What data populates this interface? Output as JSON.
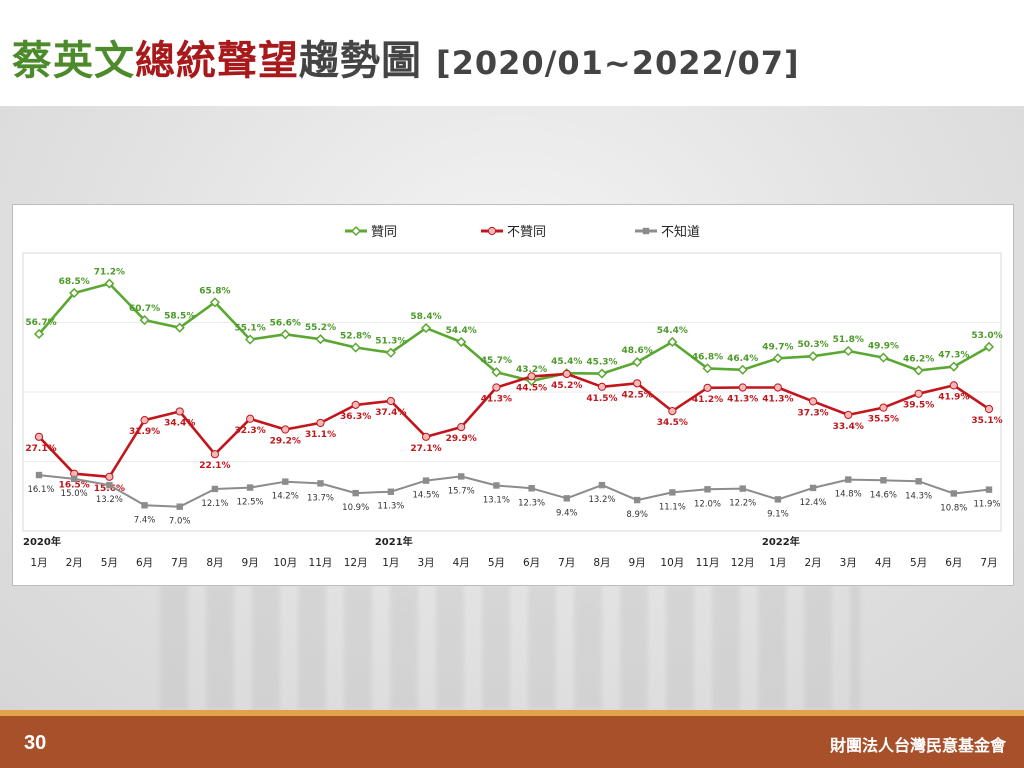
{
  "header": {
    "title_part1": "蔡英文",
    "title_part2": "總統聲望",
    "title_part3": "趨勢圖",
    "date_range": "[2020/01~2022/07]"
  },
  "footer": {
    "page_number": "30",
    "organization": "財團法人台灣民意基金會"
  },
  "chart_data": {
    "type": "line",
    "legend_position": "top-center",
    "categories": [
      "1月",
      "2月",
      "5月",
      "6月",
      "7月",
      "8月",
      "9月",
      "10月",
      "11月",
      "12月",
      "1月",
      "3月",
      "4月",
      "5月",
      "6月",
      "7月",
      "8月",
      "9月",
      "10月",
      "11月",
      "12月",
      "1月",
      "2月",
      "3月",
      "4月",
      "5月",
      "6月",
      "7月"
    ],
    "year_labels": [
      {
        "index": 0,
        "label": "2020年"
      },
      {
        "index": 10,
        "label": "2021年"
      },
      {
        "index": 21,
        "label": "2022年"
      }
    ],
    "ylim": [
      0,
      80
    ],
    "series": [
      {
        "name": "贊同",
        "color": "#5aa832",
        "marker": "diamond",
        "values": [
          56.7,
          68.5,
          71.2,
          60.7,
          58.5,
          65.8,
          55.1,
          56.6,
          55.2,
          52.8,
          51.3,
          58.4,
          54.4,
          45.7,
          43.2,
          45.4,
          45.3,
          48.6,
          54.4,
          46.8,
          46.4,
          49.7,
          50.3,
          51.8,
          49.9,
          46.2,
          47.3,
          53.0
        ],
        "labels": [
          "56.7%",
          "68.5%",
          "71.2%",
          "60.7%",
          "58.5%",
          "65.8%",
          "55.1%",
          "56.6%",
          "55.2%",
          "52.8%",
          "51.3%",
          "58.4%",
          "54.4%",
          "45.7%",
          "43.2%",
          "45.4%",
          "45.3%",
          "48.6%",
          "54.4%",
          "46.8%",
          "46.4%",
          "49.7%",
          "50.3%",
          "51.8%",
          "49.9%",
          "46.2%",
          "47.3%",
          "53.0%"
        ]
      },
      {
        "name": "不贊同",
        "color": "#c0161c",
        "marker": "circle",
        "values": [
          27.1,
          16.5,
          15.6,
          31.9,
          34.4,
          22.1,
          32.3,
          29.2,
          31.1,
          36.3,
          37.4,
          27.1,
          29.9,
          41.3,
          44.5,
          45.2,
          41.5,
          42.5,
          34.5,
          41.2,
          41.3,
          41.3,
          37.3,
          33.4,
          35.5,
          39.5,
          41.9,
          35.1
        ],
        "labels": [
          "27.1%",
          "16.5%",
          "15.6%",
          "31.9%",
          "34.4%",
          "22.1%",
          "32.3%",
          "29.2%",
          "31.1%",
          "36.3%",
          "37.4%",
          "27.1%",
          "29.9%",
          "41.3%",
          "44.5%",
          "45.2%",
          "41.5%",
          "42.5%",
          "34.5%",
          "41.2%",
          "41.3%",
          "41.3%",
          "37.3%",
          "33.4%",
          "35.5%",
          "39.5%",
          "41.9%",
          "35.1%"
        ]
      },
      {
        "name": "不知道",
        "color": "#8c8c8c",
        "marker": "square",
        "values": [
          16.1,
          15.0,
          13.2,
          7.4,
          7.0,
          12.1,
          12.5,
          14.2,
          13.7,
          10.9,
          11.3,
          14.5,
          15.7,
          13.1,
          12.3,
          9.4,
          13.2,
          8.9,
          11.1,
          12.0,
          12.2,
          9.1,
          12.4,
          14.8,
          14.6,
          14.3,
          10.8,
          11.9
        ],
        "labels": [
          "16.1%",
          "15.0%",
          "13.2%",
          "7.4%",
          "7.0%",
          "12.1%",
          "12.5%",
          "14.2%",
          "13.7%",
          "10.9%",
          "11.3%",
          "14.5%",
          "15.7%",
          "13.1%",
          "12.3%",
          "9.4%",
          "13.2%",
          "8.9%",
          "11.1%",
          "12.0%",
          "12.2%",
          "9.1%",
          "12.4%",
          "14.8%",
          "14.6%",
          "14.3%",
          "10.8%",
          "11.9%"
        ]
      }
    ]
  }
}
